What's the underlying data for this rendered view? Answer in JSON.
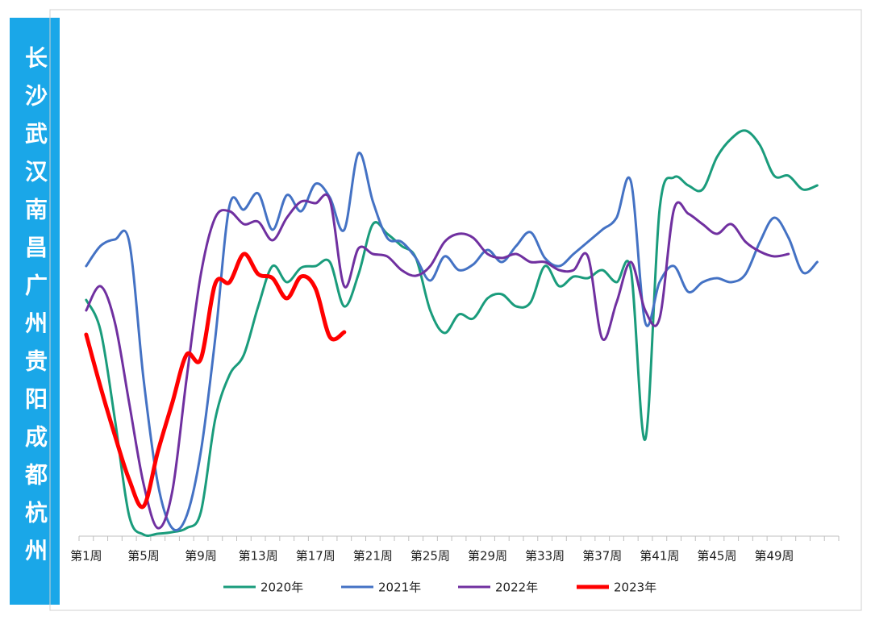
{
  "chart_data": {
    "type": "line",
    "title": "长沙武汉南昌广州贵阳成都杭州",
    "categories": [
      "第1周",
      null,
      null,
      null,
      "第5周",
      null,
      null,
      null,
      "第9周",
      null,
      null,
      null,
      "第13周",
      null,
      null,
      null,
      "第17周",
      null,
      null,
      null,
      "第21周",
      null,
      null,
      null,
      "第25周",
      null,
      null,
      null,
      "第29周",
      null,
      null,
      null,
      "第33周",
      null,
      null,
      null,
      "第37周",
      null,
      null,
      null,
      "第41周",
      null,
      null,
      null,
      "第45周",
      null,
      null,
      null,
      "第49周",
      null,
      null,
      null,
      null
    ],
    "series": [
      {
        "name": "2020年",
        "color": "#1a9c7c",
        "width": 3,
        "values": [
          58.6,
          51,
          29,
          5,
          0.4,
          0.6,
          1,
          2,
          6,
          29,
          40,
          45,
          57,
          67,
          63,
          66.6,
          67,
          68,
          57,
          65,
          77.4,
          75,
          72,
          69,
          56,
          50.4,
          55,
          54,
          59,
          60,
          57,
          58,
          67,
          62,
          64.4,
          64,
          66,
          63,
          66,
          24,
          81,
          89,
          87,
          86,
          94,
          98.6,
          100.6,
          97,
          89.4,
          89.4,
          86,
          87,
          null
        ]
      },
      {
        "name": "2021年",
        "color": "#4472c4",
        "width": 3,
        "values": [
          67,
          72,
          73.6,
          73,
          39,
          13,
          2,
          5,
          21,
          49,
          82,
          81,
          85,
          76,
          84.6,
          80.6,
          87.4,
          84,
          76,
          95,
          83,
          74,
          73,
          69,
          63.4,
          69.4,
          66,
          67.4,
          71,
          68,
          72,
          75.4,
          69,
          67,
          70,
          73,
          76,
          79,
          88,
          53,
          63,
          67,
          60.6,
          63,
          64,
          63,
          65,
          73,
          79,
          74,
          65.4,
          68,
          null
        ]
      },
      {
        "name": "2022年",
        "color": "#7030a0",
        "width": 3,
        "values": [
          56,
          62,
          53,
          33,
          13,
          2,
          11,
          39,
          65,
          79,
          80.6,
          77.4,
          78,
          73.4,
          79,
          83,
          82.6,
          83.4,
          62,
          71.4,
          70,
          69.4,
          66,
          64.6,
          67,
          73,
          75,
          74,
          70,
          69,
          70,
          68,
          68,
          66,
          66,
          69.4,
          49,
          58,
          68,
          56,
          54,
          81,
          80,
          77.4,
          75,
          77.4,
          73,
          70.6,
          69.4,
          70,
          null,
          null,
          null
        ]
      },
      {
        "name": "2023年",
        "color": "#ff0000",
        "width": 5,
        "values": [
          50,
          37,
          25,
          14,
          7.4,
          21,
          33,
          45,
          44,
          62.6,
          63,
          70,
          65,
          64,
          59,
          64.4,
          61.4,
          49.4,
          50.6,
          null,
          null,
          null,
          null,
          null,
          null,
          null,
          null,
          null,
          null,
          null,
          null,
          null,
          null,
          null,
          null,
          null,
          null,
          null,
          null,
          null,
          null,
          null,
          null,
          null,
          null,
          null,
          null,
          null,
          null,
          null,
          null,
          null,
          null
        ]
      }
    ],
    "ylim": [
      0,
      110
    ],
    "legend": "bottom"
  }
}
